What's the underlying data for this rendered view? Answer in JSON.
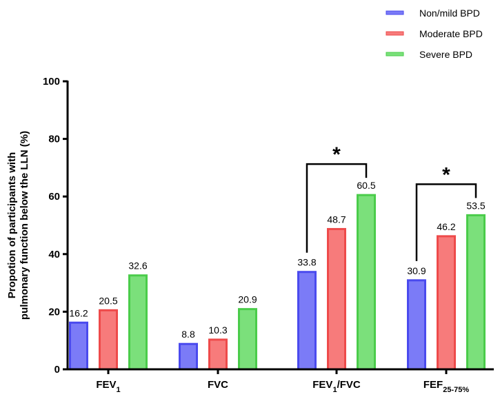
{
  "chart_data": {
    "type": "bar",
    "title": "",
    "xlabel": "",
    "ylabel_lines": [
      "Propotion of participants with",
      "pulmonary function below the LLN (%)"
    ],
    "ylim": [
      0,
      100
    ],
    "yticks": [
      0,
      20,
      40,
      60,
      80,
      100
    ],
    "categories": [
      {
        "base": "FEV",
        "sub": "1",
        "tail": ""
      },
      {
        "base": "FVC",
        "sub": "",
        "tail": ""
      },
      {
        "base": "FEV",
        "sub": "1",
        "tail": "/FVC"
      },
      {
        "base": "FEF",
        "sub": "25-75%",
        "tail": ""
      }
    ],
    "series": [
      {
        "name": "Non/mild BPD",
        "values": [
          16.2,
          8.8,
          33.8,
          30.9
        ],
        "labels": [
          "16.2",
          "8.8",
          "33.8",
          "30.9"
        ],
        "fill": "#7B7BF7",
        "stroke": "#4A4AEE"
      },
      {
        "name": "Moderate BPD",
        "values": [
          20.5,
          10.3,
          48.7,
          46.2
        ],
        "labels": [
          "20.5",
          "10.3",
          "48.7",
          "46.2"
        ],
        "fill": "#F77B7B",
        "stroke": "#EE4A4A"
      },
      {
        "name": "Severe BPD",
        "values": [
          32.6,
          20.9,
          60.5,
          53.5
        ],
        "labels": [
          "32.6",
          "20.9",
          "60.5",
          "53.5"
        ],
        "fill": "#7BE07B",
        "stroke": "#4ACC4A"
      }
    ],
    "legend": "top-right",
    "annotations": [
      {
        "category": 2,
        "from_series": 0,
        "to_series": 2,
        "text": "*"
      },
      {
        "category": 3,
        "from_series": 0,
        "to_series": 2,
        "text": "*"
      }
    ]
  }
}
